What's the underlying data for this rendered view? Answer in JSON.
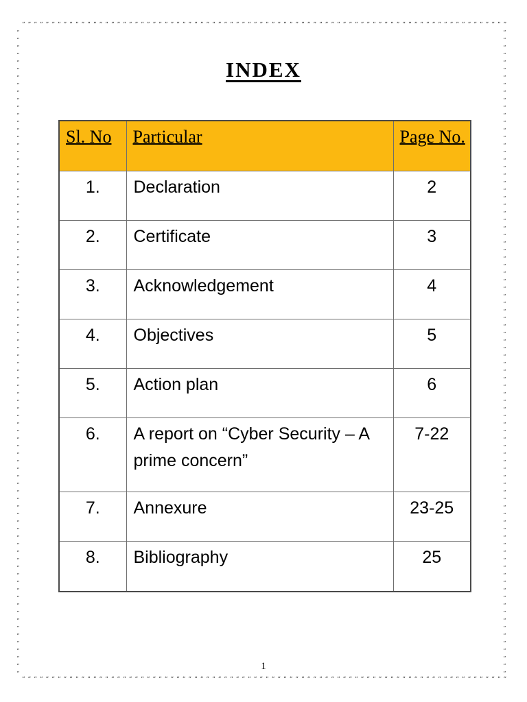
{
  "title": "INDEX",
  "table": {
    "headers": {
      "sl": "Sl. No",
      "particular": "Particular",
      "page": "Page No."
    },
    "rows": [
      {
        "sl": "1.",
        "particular": "Declaration",
        "page": "2"
      },
      {
        "sl": "2.",
        "particular": "Certificate",
        "page": "3"
      },
      {
        "sl": "3.",
        "particular": "Acknowledgement",
        "page": "4"
      },
      {
        "sl": "4.",
        "particular": "Objectives",
        "page": "5"
      },
      {
        "sl": "5.",
        "particular": "Action plan",
        "page": "6"
      },
      {
        "sl": "6.",
        "particular": "A report on “Cyber Security – A prime concern”",
        "page": "7-22"
      },
      {
        "sl": "7.",
        "particular": "Annexure",
        "page": "23-25"
      },
      {
        "sl": "8.",
        "particular": "Bibliography",
        "page": "25"
      }
    ]
  },
  "footer": {
    "page_number": "1"
  },
  "colors": {
    "header_bg": "#FBB810",
    "table_border_outer": "#4A4A4A",
    "table_border_inner": "#6E6E6E",
    "border_art": "#3A3A3A",
    "text": "#000000",
    "page_bg": "#FFFFFF"
  },
  "border_art": {
    "glyph": "„",
    "horizontal_count": 130,
    "vertical_count": 160
  }
}
